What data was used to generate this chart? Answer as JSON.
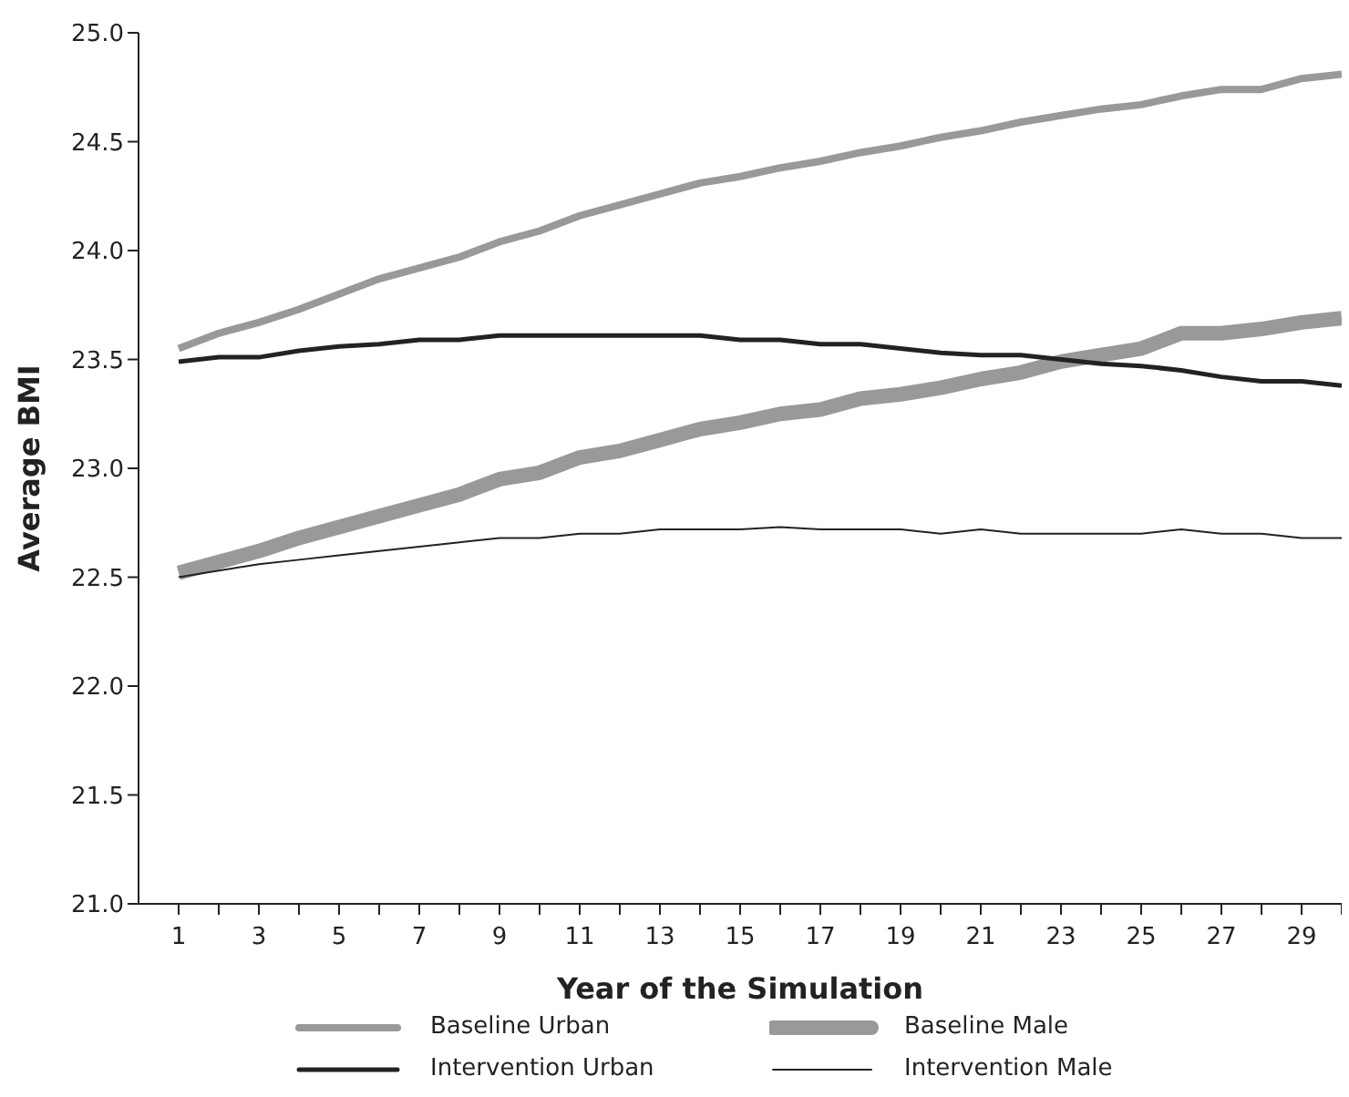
{
  "chart_data": {
    "type": "line",
    "xlabel": "Year of the Simulation",
    "ylabel": "Average  BMI",
    "x": [
      1,
      2,
      3,
      4,
      5,
      6,
      7,
      8,
      9,
      10,
      11,
      12,
      13,
      14,
      15,
      16,
      17,
      18,
      19,
      20,
      21,
      22,
      23,
      24,
      25,
      26,
      27,
      28,
      29,
      30
    ],
    "xlim": [
      0,
      30
    ],
    "xticks": [
      1,
      {
        "value": 2,
        "label": null
      },
      3,
      {
        "value": 4,
        "label": null
      },
      5,
      {
        "value": 6,
        "label": null
      },
      7,
      {
        "value": 8,
        "label": null
      },
      9,
      {
        "value": 10,
        "label": null
      },
      11,
      {
        "value": 12,
        "label": null
      },
      13,
      {
        "value": 14,
        "label": null
      },
      15,
      {
        "value": 16,
        "label": null
      },
      17,
      {
        "value": 18,
        "label": null
      },
      19,
      {
        "value": 20,
        "label": null
      },
      21,
      {
        "value": 22,
        "label": null
      },
      23,
      {
        "value": 24,
        "label": null
      },
      25,
      {
        "value": 26,
        "label": null
      },
      27,
      {
        "value": 28,
        "label": null
      },
      29,
      {
        "value": 30,
        "label": null
      }
    ],
    "ylim": [
      21,
      25
    ],
    "yticks": [
      {
        "value": 21,
        "label": "21.0"
      },
      {
        "value": 21.5,
        "label": "21.5"
      },
      {
        "value": 22,
        "label": "22.0"
      },
      {
        "value": 22.5,
        "label": "22.5"
      },
      {
        "value": 23,
        "label": "23.0"
      },
      {
        "value": 23.5,
        "label": "23.5"
      },
      {
        "value": 24,
        "label": "24.0"
      },
      {
        "value": 24.5,
        "label": "24.5"
      },
      {
        "value": 25,
        "label": "25.0"
      }
    ],
    "grid": false,
    "legend": "bottom",
    "marker": "none",
    "line_style": "solid",
    "series": [
      {
        "name": "Baseline Urban",
        "color": "#999999",
        "values": [
          23.55,
          23.62,
          23.67,
          23.73,
          23.8,
          23.87,
          23.92,
          23.97,
          24.04,
          24.09,
          24.16,
          24.21,
          24.26,
          24.31,
          24.34,
          24.38,
          24.41,
          24.45,
          24.48,
          24.52,
          24.55,
          24.59,
          24.62,
          24.65,
          24.67,
          24.71,
          24.74,
          24.74,
          24.79,
          24.81
        ]
      },
      {
        "name": "Baseline Male",
        "color": "#999999",
        "values": [
          22.52,
          22.57,
          22.62,
          22.68,
          22.73,
          22.78,
          22.83,
          22.88,
          22.95,
          22.98,
          23.05,
          23.08,
          23.13,
          23.18,
          23.21,
          23.25,
          23.27,
          23.32,
          23.34,
          23.37,
          23.41,
          23.44,
          23.49,
          23.52,
          23.55,
          23.62,
          23.62,
          23.64,
          23.67,
          23.69
        ]
      },
      {
        "name": "Intervention Urban",
        "color": "#222222",
        "values": [
          23.49,
          23.51,
          23.51,
          23.54,
          23.56,
          23.57,
          23.59,
          23.59,
          23.61,
          23.61,
          23.61,
          23.61,
          23.61,
          23.61,
          23.59,
          23.59,
          23.57,
          23.57,
          23.55,
          23.53,
          23.52,
          23.52,
          23.5,
          23.48,
          23.47,
          23.45,
          23.42,
          23.4,
          23.4,
          23.38
        ]
      },
      {
        "name": "Intervention Male",
        "color": "#222222",
        "values": [
          22.5,
          22.53,
          22.56,
          22.58,
          22.6,
          22.62,
          22.64,
          22.66,
          22.68,
          22.68,
          22.7,
          22.7,
          22.72,
          22.72,
          22.72,
          22.73,
          22.72,
          22.72,
          22.72,
          22.7,
          22.72,
          22.7,
          22.7,
          22.7,
          22.7,
          22.72,
          22.7,
          22.7,
          22.68,
          22.68
        ]
      }
    ]
  }
}
